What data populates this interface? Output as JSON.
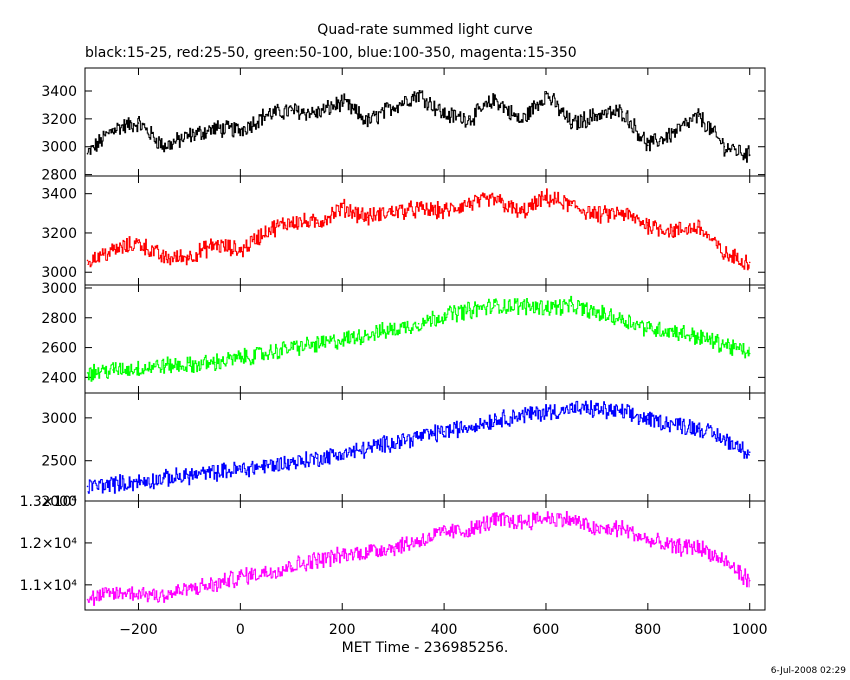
{
  "title": "Quad-rate summed light curve",
  "subtitle": "black:15-25, red:25-50, green:50-100, blue:100-350, magenta:15-350",
  "xlabel": "MET Time - 236985256.",
  "timestamp": "6-Jul-2008 02:29",
  "chart_data": {
    "type": "line",
    "title": "Quad-rate summed light curve",
    "xlabel": "MET Time - 236985256.",
    "xlim": [
      -305,
      1030
    ],
    "xticks": [
      -200,
      0,
      200,
      400,
      600,
      800,
      1000
    ],
    "xtick_labels": [
      "−200",
      "0",
      "200",
      "400",
      "600",
      "800",
      "1000"
    ],
    "panels": [
      {
        "name": "black:15-25",
        "color": "#000000",
        "ylim": [
          2790,
          3565
        ],
        "yticks": [
          2800,
          3000,
          3200,
          3400
        ],
        "ytick_labels": [
          "2800",
          "3000",
          "3200",
          "3400"
        ],
        "x": [
          -300,
          -250,
          -200,
          -150,
          -100,
          -50,
          0,
          50,
          100,
          150,
          200,
          250,
          300,
          350,
          400,
          450,
          500,
          550,
          600,
          650,
          700,
          750,
          800,
          850,
          900,
          950,
          1000
        ],
        "values": [
          2950,
          3130,
          3170,
          3000,
          3080,
          3130,
          3120,
          3230,
          3260,
          3240,
          3320,
          3180,
          3290,
          3380,
          3230,
          3200,
          3340,
          3180,
          3380,
          3160,
          3230,
          3250,
          3010,
          3100,
          3220,
          3000,
          2940
        ]
      },
      {
        "name": "red:25-50",
        "color": "#ff0000",
        "ylim": [
          2935,
          3490
        ],
        "yticks": [
          3000,
          3200,
          3400
        ],
        "ytick_labels": [
          "3000",
          "3200",
          "3400"
        ],
        "x": [
          -300,
          -250,
          -200,
          -150,
          -100,
          -50,
          0,
          50,
          100,
          150,
          200,
          250,
          300,
          350,
          400,
          450,
          500,
          550,
          600,
          650,
          700,
          750,
          800,
          850,
          900,
          950,
          1000
        ],
        "values": [
          3060,
          3110,
          3150,
          3070,
          3080,
          3140,
          3110,
          3210,
          3260,
          3250,
          3330,
          3280,
          3310,
          3320,
          3310,
          3350,
          3370,
          3300,
          3380,
          3340,
          3290,
          3300,
          3240,
          3210,
          3230,
          3090,
          3050
        ]
      },
      {
        "name": "green:50-100",
        "color": "#00ff00",
        "ylim": [
          2295,
          3020
        ],
        "yticks": [
          2400,
          2600,
          2800,
          3000
        ],
        "ytick_labels": [
          "2400",
          "2600",
          "2800",
          "3000"
        ],
        "x": [
          -300,
          -250,
          -200,
          -150,
          -100,
          -50,
          0,
          50,
          100,
          150,
          200,
          250,
          300,
          350,
          400,
          450,
          500,
          550,
          600,
          650,
          700,
          750,
          800,
          850,
          900,
          950,
          1000
        ],
        "values": [
          2430,
          2450,
          2460,
          2480,
          2480,
          2500,
          2530,
          2560,
          2600,
          2620,
          2650,
          2690,
          2720,
          2760,
          2820,
          2850,
          2880,
          2880,
          2870,
          2880,
          2830,
          2790,
          2730,
          2710,
          2670,
          2620,
          2560
        ]
      },
      {
        "name": "blue:100-350",
        "color": "#0000ff",
        "ylim": [
          2030,
          3290
        ],
        "yticks": [
          2000,
          2500,
          3000
        ],
        "ytick_labels": [
          "2000",
          "2500",
          "3000"
        ],
        "x": [
          -300,
          -250,
          -200,
          -150,
          -100,
          -50,
          0,
          50,
          100,
          150,
          200,
          250,
          300,
          350,
          400,
          450,
          500,
          550,
          600,
          650,
          700,
          750,
          800,
          850,
          900,
          950,
          1000
        ],
        "values": [
          2200,
          2230,
          2250,
          2290,
          2330,
          2360,
          2400,
          2440,
          2480,
          2530,
          2580,
          2640,
          2720,
          2780,
          2840,
          2900,
          2980,
          3030,
          3070,
          3100,
          3100,
          3060,
          2980,
          2930,
          2880,
          2750,
          2600
        ]
      },
      {
        "name": "magenta:15-350",
        "color": "#ff00ff",
        "ylim": [
          10400,
          13000
        ],
        "yticks": [
          11000,
          12000,
          13000
        ],
        "ytick_labels": [
          "1.1×10⁴",
          "1.2×10⁴",
          "1.3×10⁴"
        ],
        "x": [
          -300,
          -250,
          -200,
          -150,
          -100,
          -50,
          0,
          50,
          100,
          150,
          200,
          250,
          300,
          350,
          400,
          450,
          500,
          550,
          600,
          650,
          700,
          750,
          800,
          850,
          900,
          950,
          1000
        ],
        "values": [
          10650,
          10800,
          10800,
          10750,
          10900,
          11000,
          11200,
          11300,
          11450,
          11600,
          11700,
          11800,
          11900,
          12050,
          12250,
          12300,
          12550,
          12500,
          12600,
          12550,
          12300,
          12350,
          12050,
          11900,
          11900,
          11550,
          11100
        ]
      }
    ]
  }
}
